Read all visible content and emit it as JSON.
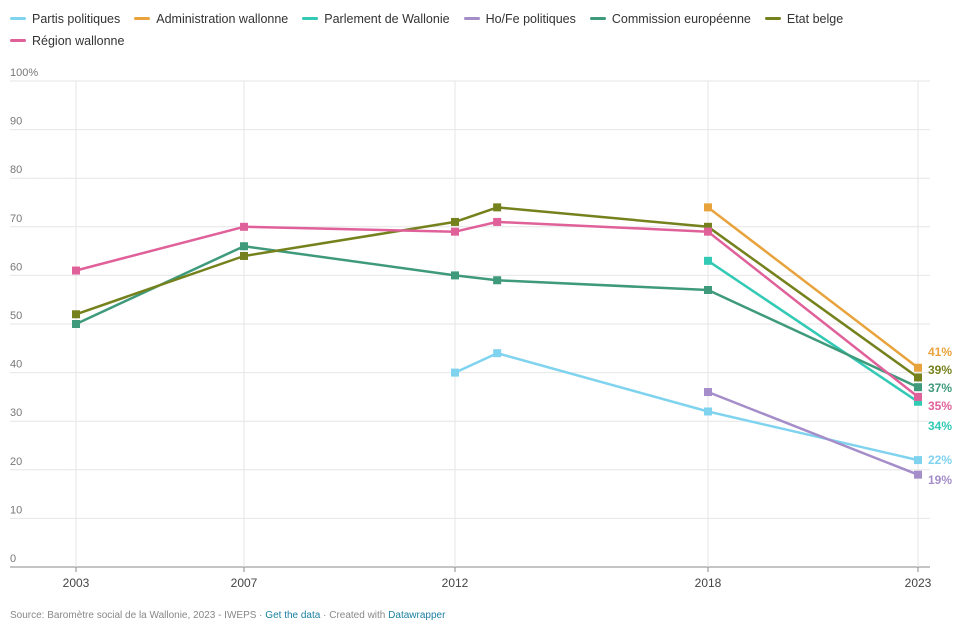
{
  "chart_data": {
    "type": "line",
    "ylim": [
      0,
      100
    ],
    "y_ticks": [
      "0",
      "10",
      "20",
      "30",
      "40",
      "50",
      "60",
      "70",
      "80",
      "90",
      "100%"
    ],
    "x_ticks": [
      "2003",
      "2007",
      "2012",
      "2018",
      "2023"
    ],
    "grid": true,
    "legend_position": "top",
    "series": [
      {
        "name": "Partis politiques",
        "color": "#7fd3ef",
        "points": [
          [
            2012,
            40
          ],
          [
            2013,
            44
          ],
          [
            2018,
            32
          ],
          [
            2023,
            22
          ]
        ],
        "end_label": "22%"
      },
      {
        "name": "Administration wallonne",
        "color": "#e8a33d",
        "points": [
          [
            2018,
            74
          ],
          [
            2023,
            41
          ]
        ],
        "end_label": "41%"
      },
      {
        "name": "Parlement de Wallonie",
        "color": "#32c9b5",
        "points": [
          [
            2018,
            63
          ],
          [
            2023,
            34
          ]
        ],
        "end_label": "34%"
      },
      {
        "name": "Ho/Fe politiques",
        "color": "#a48dc9",
        "points": [
          [
            2018,
            36
          ],
          [
            2023,
            19
          ]
        ],
        "end_label": "19%"
      },
      {
        "name": "Commission européenne",
        "color": "#3e9a7b",
        "points": [
          [
            2003,
            50
          ],
          [
            2007,
            66
          ],
          [
            2012,
            60
          ],
          [
            2013,
            59
          ],
          [
            2018,
            57
          ],
          [
            2023,
            37
          ]
        ],
        "end_label": "37%"
      },
      {
        "name": "Etat belge",
        "color": "#75811d",
        "points": [
          [
            2003,
            52
          ],
          [
            2007,
            64
          ],
          [
            2012,
            71
          ],
          [
            2013,
            74
          ],
          [
            2018,
            70
          ],
          [
            2023,
            39
          ]
        ],
        "end_label": "39%"
      },
      {
        "name": "Région wallonne",
        "color": "#e0619a",
        "points": [
          [
            2003,
            61
          ],
          [
            2007,
            70
          ],
          [
            2012,
            69
          ],
          [
            2013,
            71
          ],
          [
            2018,
            69
          ],
          [
            2023,
            35
          ]
        ],
        "end_label": "35%"
      }
    ]
  },
  "footer": {
    "source": "Source: Baromètre social de la Wallonie, 2023 - IWEPS · ",
    "get_data": "Get the data",
    "created": " · Created with ",
    "datawrapper": "Datawrapper"
  }
}
